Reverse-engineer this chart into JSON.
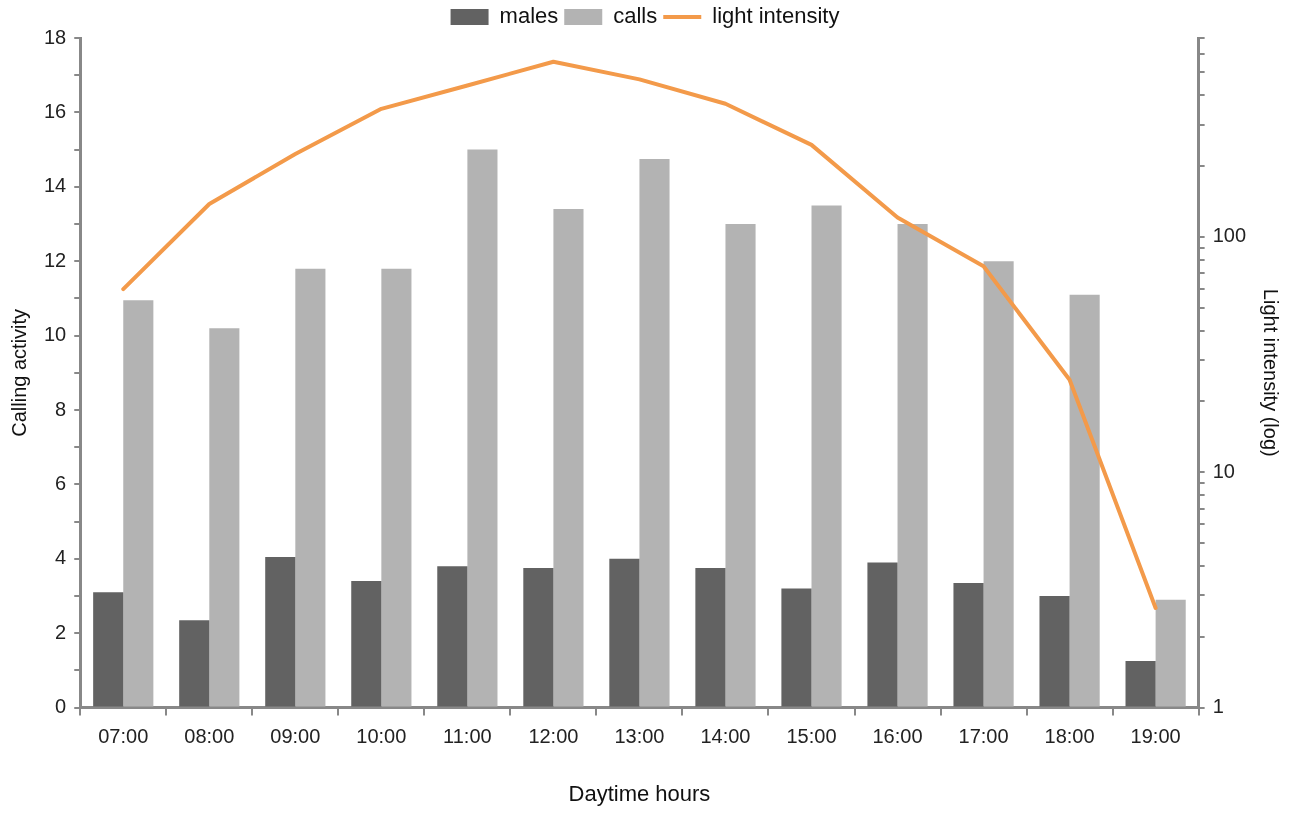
{
  "chart_data": {
    "type": "bar",
    "xlabel": "Daytime hours",
    "ylabel": "Calling activity",
    "y2label": "Light intensity (log)",
    "categories": [
      "07:00",
      "08:00",
      "09:00",
      "10:00",
      "11:00",
      "12:00",
      "13:00",
      "14:00",
      "15:00",
      "16:00",
      "17:00",
      "18:00",
      "19:00"
    ],
    "series": [
      {
        "name": "males",
        "color": "#626262",
        "values": [
          3.1,
          2.35,
          4.05,
          3.4,
          3.8,
          3.75,
          4.0,
          3.75,
          3.2,
          3.9,
          3.35,
          3.0,
          1.25
        ]
      },
      {
        "name": "calls",
        "color": "#b3b3b3",
        "values": [
          10.95,
          10.2,
          11.8,
          11.8,
          15.0,
          13.4,
          14.75,
          13.0,
          13.5,
          13.0,
          12.0,
          11.1,
          2.9
        ]
      },
      {
        "name": "light intensity",
        "type": "line",
        "axis": "y2",
        "color": "#f39a4a",
        "marker": "none",
        "line_style": "solid",
        "values": [
          60,
          138,
          225,
          350,
          440,
          555,
          467,
          368,
          246,
          121,
          75,
          24.7,
          2.65
        ]
      }
    ],
    "ylim": [
      0,
      18
    ],
    "yticks": [
      0,
      {
        "value": 1,
        "label": null
      },
      2,
      {
        "value": 3,
        "label": null
      },
      4,
      {
        "value": 5,
        "label": null
      },
      6,
      {
        "value": 7,
        "label": null
      },
      8,
      {
        "value": 9,
        "label": null
      },
      10,
      {
        "value": 11,
        "label": null
      },
      12,
      {
        "value": 13,
        "label": null
      },
      14,
      {
        "value": 15,
        "label": null
      },
      16,
      {
        "value": 17,
        "label": null
      },
      18
    ],
    "log": "y2",
    "y2lim": [
      1,
      700
    ],
    "y2ticks": [
      1,
      {
        "value": 2,
        "label": null
      },
      {
        "value": 3,
        "label": null
      },
      {
        "value": 4,
        "label": null
      },
      {
        "value": 5,
        "label": null
      },
      {
        "value": 6,
        "label": null
      },
      {
        "value": 7,
        "label": null
      },
      {
        "value": 8,
        "label": null
      },
      {
        "value": 9,
        "label": null
      },
      10,
      {
        "value": 20,
        "label": null
      },
      {
        "value": 30,
        "label": null
      },
      {
        "value": 40,
        "label": null
      },
      {
        "value": 50,
        "label": null
      },
      {
        "value": 60,
        "label": null
      },
      {
        "value": 70,
        "label": null
      },
      {
        "value": 80,
        "label": null
      },
      {
        "value": 90,
        "label": null
      },
      100,
      {
        "value": 200,
        "label": null
      },
      {
        "value": 300,
        "label": null
      },
      {
        "value": 400,
        "label": null
      },
      {
        "value": 500,
        "label": null
      },
      {
        "value": 600,
        "label": null
      },
      {
        "value": 700,
        "label": null
      }
    ],
    "grid": false,
    "legend": "top"
  }
}
